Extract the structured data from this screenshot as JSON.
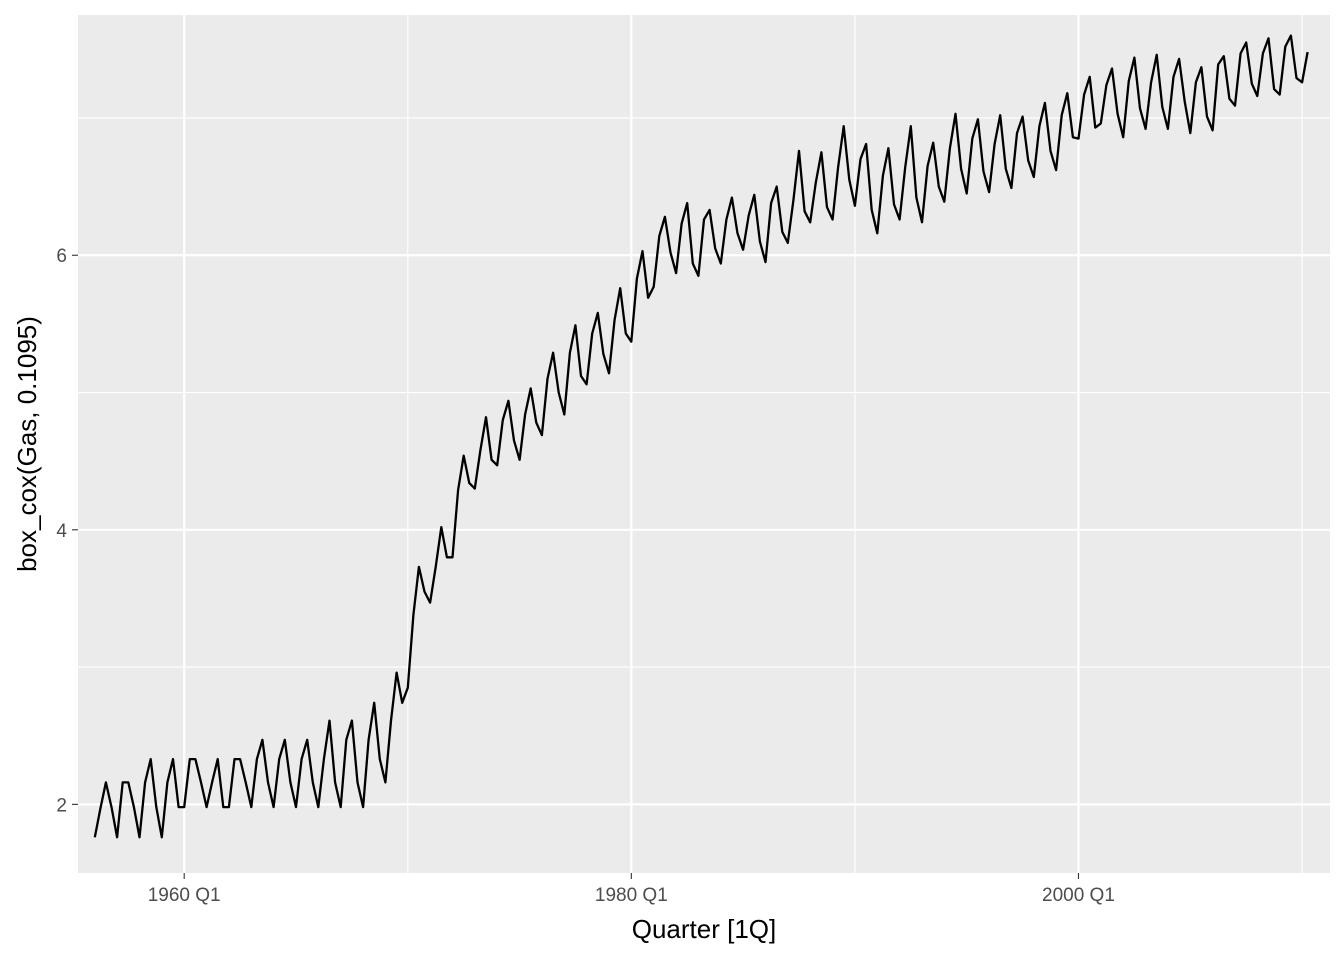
{
  "chart_data": {
    "type": "line",
    "title": "",
    "xlabel": "Quarter [1Q]",
    "ylabel": "box_cox(Gas, 0.1095)",
    "x_start": "1956 Q1",
    "x_end": "2010 Q2",
    "x_ticks": [
      {
        "label": "1960 Q1",
        "value": 1960.0
      },
      {
        "label": "1980 Q1",
        "value": 1980.0
      },
      {
        "label": "2000 Q1",
        "value": 2000.0
      }
    ],
    "y_ticks": [
      {
        "label": "2",
        "value": 2
      },
      {
        "label": "4",
        "value": 4
      },
      {
        "label": "6",
        "value": 6
      }
    ],
    "xlim": [
      1955.25,
      2011.25
    ],
    "ylim": [
      1.5,
      7.75
    ],
    "grid": true,
    "background": "#ebebeb",
    "line_color": "#000000",
    "series": [
      {
        "values": [
          1.76,
          1.97,
          2.16,
          1.98,
          1.76,
          2.16,
          2.16,
          1.98,
          1.76,
          2.16,
          2.33,
          1.98,
          1.76,
          2.16,
          2.33,
          1.98,
          1.98,
          2.33,
          2.33,
          2.16,
          1.98,
          2.16,
          2.33,
          1.98,
          1.98,
          2.33,
          2.33,
          2.16,
          1.98,
          2.33,
          2.47,
          2.16,
          1.98,
          2.33,
          2.47,
          2.16,
          1.98,
          2.33,
          2.47,
          2.16,
          1.98,
          2.33,
          2.61,
          2.16,
          1.98,
          2.47,
          2.61,
          2.16,
          1.98,
          2.47,
          2.74,
          2.33,
          2.16,
          2.61,
          2.96,
          2.74,
          2.85,
          3.38,
          3.73,
          3.55,
          3.47,
          3.73,
          4.02,
          3.8,
          3.8,
          4.29,
          4.54,
          4.34,
          4.3,
          4.58,
          4.82,
          4.51,
          4.47,
          4.8,
          4.94,
          4.65,
          4.51,
          4.84,
          5.03,
          4.78,
          4.69,
          5.1,
          5.29,
          5.0,
          4.84,
          5.29,
          5.49,
          5.12,
          5.06,
          5.43,
          5.58,
          5.28,
          5.14,
          5.53,
          5.76,
          5.43,
          5.37,
          5.83,
          6.03,
          5.69,
          5.77,
          6.14,
          6.28,
          6.02,
          5.87,
          6.23,
          6.38,
          5.94,
          5.85,
          6.26,
          6.33,
          6.05,
          5.94,
          6.26,
          6.42,
          6.16,
          6.04,
          6.29,
          6.44,
          6.1,
          5.95,
          6.38,
          6.5,
          6.17,
          6.09,
          6.4,
          6.76,
          6.32,
          6.24,
          6.53,
          6.75,
          6.35,
          6.26,
          6.64,
          6.94,
          6.55,
          6.36,
          6.7,
          6.81,
          6.33,
          6.16,
          6.58,
          6.78,
          6.37,
          6.26,
          6.64,
          6.94,
          6.42,
          6.24,
          6.65,
          6.82,
          6.5,
          6.39,
          6.78,
          7.03,
          6.63,
          6.45,
          6.85,
          6.99,
          6.61,
          6.46,
          6.81,
          7.02,
          6.63,
          6.49,
          6.89,
          7.01,
          6.69,
          6.57,
          6.94,
          7.11,
          6.76,
          6.62,
          7.02,
          7.18,
          6.86,
          6.85,
          7.17,
          7.3,
          6.93,
          6.96,
          7.24,
          7.36,
          7.03,
          6.86,
          7.27,
          7.44,
          7.07,
          6.92,
          7.26,
          7.46,
          7.08,
          6.92,
          7.3,
          7.43,
          7.12,
          6.89,
          7.26,
          7.37,
          7.01,
          6.91,
          7.39,
          7.45,
          7.14,
          7.09,
          7.47,
          7.55,
          7.25,
          7.16,
          7.47,
          7.58,
          7.21,
          7.17,
          7.52,
          7.6,
          7.29,
          7.26,
          7.48
        ]
      }
    ]
  }
}
